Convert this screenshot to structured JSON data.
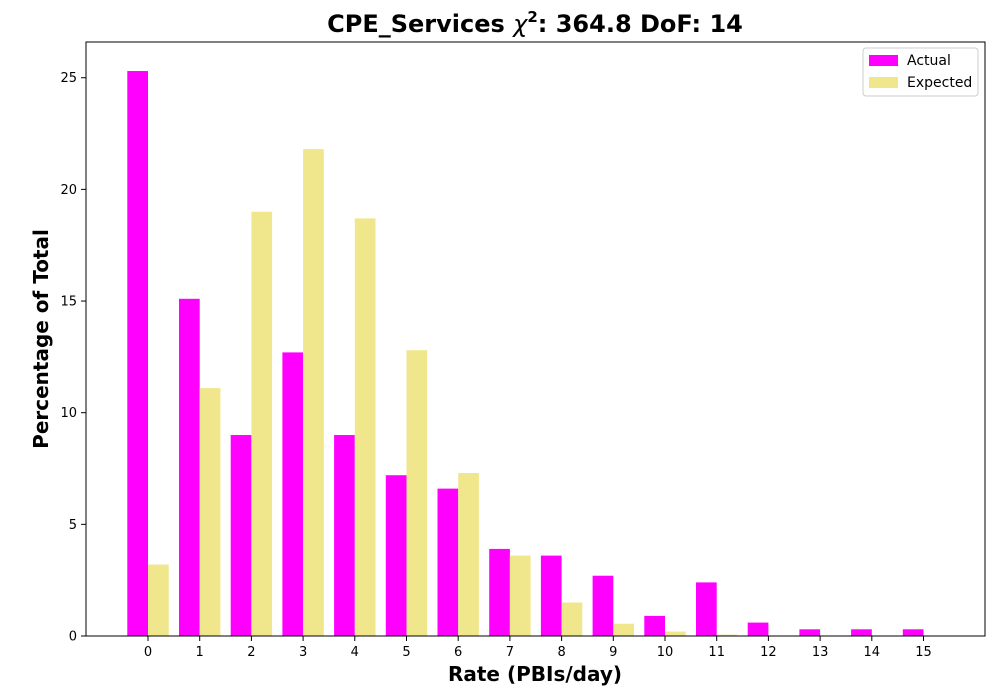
{
  "chart_data": {
    "type": "bar",
    "title_prefix": "CPE_Services ",
    "title_chi": "χ",
    "title_sup": "2",
    "title_suffix": ": 364.8 DoF: 14",
    "xlabel": "Rate (PBIs/day)",
    "ylabel": "Percentage of Total",
    "categories": [
      "0",
      "1",
      "2",
      "3",
      "4",
      "5",
      "6",
      "7",
      "8",
      "9",
      "10",
      "11",
      "12",
      "13",
      "14",
      "15"
    ],
    "ylim": [
      0,
      26.6
    ],
    "yticks": [
      0,
      5,
      10,
      15,
      20,
      25
    ],
    "grid": false,
    "legend_position": "top-right",
    "series": [
      {
        "name": "Actual",
        "color": "#ff00ff",
        "values": [
          25.3,
          15.1,
          9.0,
          12.7,
          9.0,
          7.2,
          6.6,
          3.9,
          3.6,
          2.7,
          0.9,
          2.4,
          0.6,
          0.3,
          0.3,
          0.3
        ]
      },
      {
        "name": "Expected",
        "color": "#f0e68c",
        "values": [
          3.2,
          11.1,
          19.0,
          21.8,
          18.7,
          12.8,
          7.3,
          3.6,
          1.5,
          0.55,
          0.2,
          0.06,
          0.02,
          0.0,
          0.0,
          0.0
        ]
      }
    ]
  }
}
